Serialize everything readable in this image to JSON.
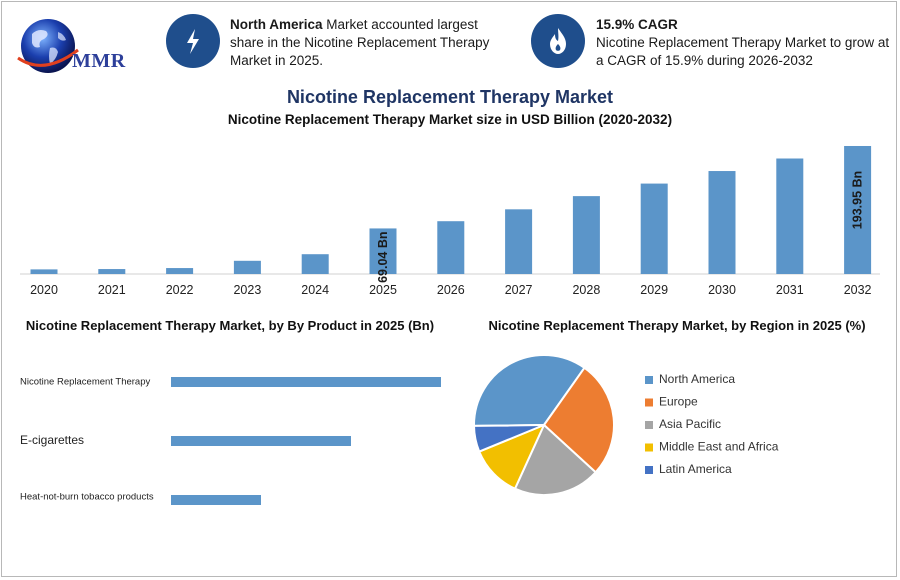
{
  "header": {
    "logo_text": "MMR",
    "info1": {
      "icon": "lightning-icon",
      "bold": "North America",
      "text": " Market accounted largest share in the Nicotine Replacement Therapy Market in 2025."
    },
    "info2": {
      "icon": "flame-icon",
      "bold": "15.9% CAGR",
      "text": "Nicotine Replacement Therapy Market to grow at a CAGR of 15.9% during 2026-2032"
    }
  },
  "title": "Nicotine Replacement Therapy Market",
  "colors": {
    "bar": "#5b95c9",
    "navy": "#1f4e8c",
    "north_america": "#5b95c9",
    "europe": "#ed7d31",
    "asia_pacific": "#a5a5a5",
    "mea": "#f2bf00",
    "latin_america": "#4472c4"
  },
  "chart_data": [
    {
      "type": "bar",
      "title": "Nicotine Replacement Therapy Market size in USD Billion (2020-2032)",
      "categories": [
        "2020",
        "2021",
        "2022",
        "2023",
        "2024",
        "2025",
        "2026",
        "2027",
        "2028",
        "2029",
        "2030",
        "2031",
        "2032"
      ],
      "values": [
        7.0,
        7.5,
        9.0,
        20.0,
        30.0,
        69.04,
        80.0,
        98.0,
        118.0,
        137.0,
        156.0,
        175.0,
        193.95
      ],
      "data_labels": {
        "2025": "69.04 Bn",
        "2032": "193.95 Bn"
      },
      "ylim": [
        0,
        200
      ]
    },
    {
      "type": "bar",
      "orientation": "horizontal",
      "title": "Nicotine Replacement Therapy Market, by By Product in 2025 (Bn)",
      "categories": [
        "Nicotine Replacement Therapy",
        "E-cigarettes",
        "Heat-not-burn tobacco products"
      ],
      "values": [
        30,
        20,
        10
      ],
      "xlim": [
        0,
        30
      ]
    },
    {
      "type": "pie",
      "title": "Nicotine Replacement Therapy Market, by Region in 2025 (%)",
      "labels": [
        "North America",
        "Europe",
        "Asia Pacific",
        "Middle East and Africa",
        "Latin America"
      ],
      "values": [
        35,
        27,
        20,
        12,
        6
      ],
      "legend": "right"
    }
  ]
}
